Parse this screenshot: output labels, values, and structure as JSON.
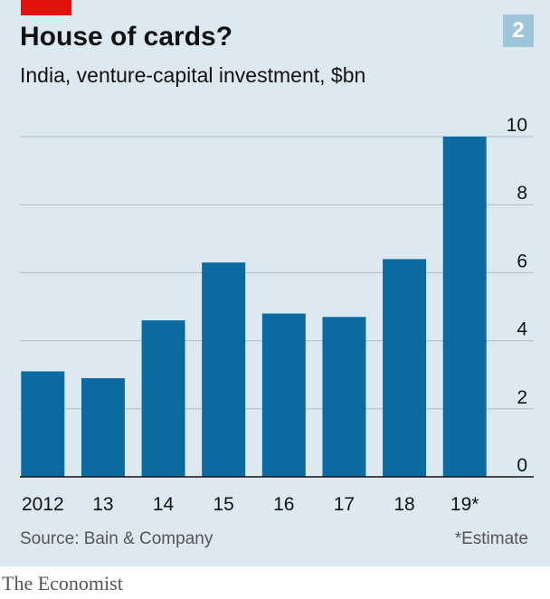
{
  "header": {
    "title": "House of cards?",
    "subtitle": "India, venture-capital investment, $bn",
    "chart_number": "2"
  },
  "footer": {
    "source": "Source: Bain & Company",
    "footnote": "*Estimate",
    "brand": "The Economist"
  },
  "colors": {
    "bar": "#0b6ba1",
    "background": "#dce9f0",
    "grid": "#a9bcc9",
    "axis": "#121212",
    "accent_red": "#e3120b"
  },
  "chart_data": {
    "type": "bar",
    "title": "House of cards?",
    "subtitle": "India, venture-capital investment, $bn",
    "categories": [
      "2012",
      "13",
      "14",
      "15",
      "16",
      "17",
      "18",
      "19*"
    ],
    "values": [
      3.1,
      2.9,
      4.6,
      6.3,
      4.8,
      4.7,
      6.4,
      10.0
    ],
    "ylim": [
      0,
      10
    ],
    "yticks": [
      0,
      2,
      4,
      6,
      8,
      10
    ],
    "y_axis_position": "right",
    "grid": true,
    "xlabel": "",
    "ylabel": ""
  }
}
